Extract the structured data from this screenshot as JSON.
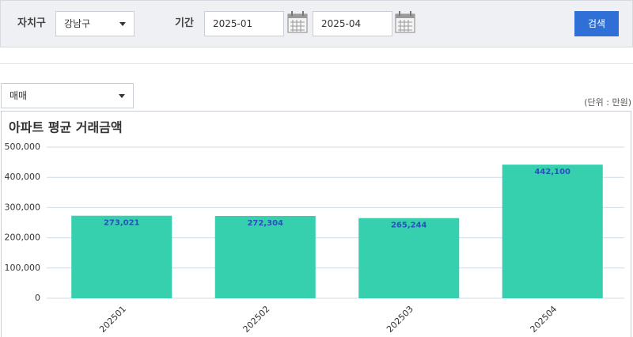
{
  "filters": {
    "district_label": "자치구",
    "district": "강남구",
    "period_label": "기간",
    "start": "2025-01",
    "end": "2025-04",
    "search_button": "검색"
  },
  "trade_type": "매매",
  "unit_note": "(단위 : 만원)",
  "chart_data": {
    "type": "bar",
    "title": "아파트 평균 거래금액",
    "categories": [
      "202501",
      "202502",
      "202503",
      "202504"
    ],
    "values": [
      273021,
      272304,
      265244,
      442100
    ],
    "value_labels": [
      "273,021",
      "272,304",
      "265,244",
      "442,100"
    ],
    "color": "#36d0ae",
    "ylim": [
      0,
      500000
    ],
    "yticks": [
      0,
      {
        "value": 100000,
        "label": "100,000"
      },
      {
        "value": 200000,
        "label": "200,000"
      },
      {
        "value": 300000,
        "label": "300,000"
      },
      {
        "value": 400000,
        "label": "400,000"
      },
      {
        "value": 500000,
        "label": "500,000"
      }
    ],
    "grid": true
  }
}
